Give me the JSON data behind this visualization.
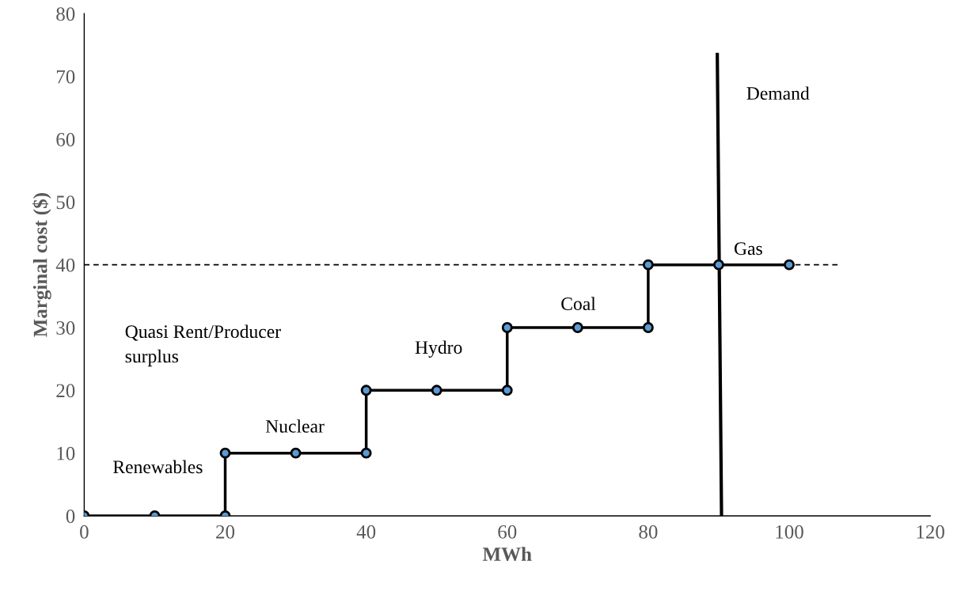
{
  "chart_data": {
    "type": "line",
    "xlabel": "MWh",
    "ylabel": "Marginal cost ($)",
    "xlim": [
      0,
      120
    ],
    "xticks": [
      0,
      20,
      40,
      60,
      80,
      100,
      120
    ],
    "ylim": [
      0,
      80
    ],
    "yticks": [
      0,
      10,
      20,
      30,
      40,
      50,
      60,
      70,
      80
    ],
    "grid": false,
    "legend": false,
    "series": [
      {
        "line_style": "dashed",
        "color": "#000000",
        "x": [
          0,
          107
        ],
        "values": [
          40,
          40
        ]
      },
      {
        "marker": "circle",
        "color": "#5b9bd5",
        "x": [
          0,
          10,
          20,
          20,
          30,
          40,
          40,
          50,
          60,
          60,
          70,
          80,
          80,
          90,
          100
        ],
        "values": [
          0,
          0,
          0,
          10,
          10,
          10,
          20,
          20,
          20,
          30,
          30,
          30,
          40,
          40,
          40
        ]
      },
      {
        "color": "#000000",
        "x": [
          90.4,
          89.8
        ],
        "values": [
          0,
          73.5
        ]
      }
    ],
    "annotations": [
      "Renewables",
      "Nuclear",
      "Hydro",
      "Coal",
      "Gas",
      "Demand",
      "Quasi Rent/Producer\nsurplus"
    ]
  }
}
